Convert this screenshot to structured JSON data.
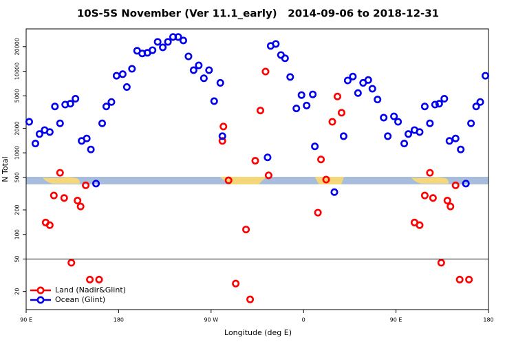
{
  "chart_data": {
    "type": "scatter",
    "title": "10S-5S November (Ver 11.1_early)   2014-09-06 to 2018-12-31",
    "xlabel": "Longitude (deg E)",
    "ylabel": "N Total",
    "xlim": [
      90,
      540
    ],
    "xticks": [
      {
        "value": 90,
        "label": "90 E"
      },
      180,
      {
        "value": 270,
        "label": "90 W"
      },
      {
        "value": 360,
        "label": "0"
      },
      {
        "value": 450,
        "label": "90 E"
      },
      {
        "value": 540,
        "label": "180"
      }
    ],
    "ylim": [
      12,
      33000
    ],
    "log_y": true,
    "yticks": [
      20,
      50,
      100,
      200,
      500,
      1000,
      2000,
      5000,
      10000,
      20000
    ],
    "hline": 50,
    "legend": "bottom-left",
    "series": [
      {
        "name": "Land (Nadir&Glint)",
        "color": "#ff0000",
        "x": [
          109,
          113,
          117,
          123,
          127,
          134,
          140,
          143,
          148,
          152,
          161,
          281,
          282,
          287,
          294,
          304,
          308,
          313,
          318,
          323,
          326,
          374,
          377,
          382,
          388,
          393,
          397,
          468,
          473,
          478,
          483,
          486,
          494,
          500,
          503,
          508,
          512,
          521
        ],
        "values": [
          140,
          130,
          300,
          570,
          280,
          45,
          260,
          220,
          400,
          28,
          28,
          1400,
          2100,
          460,
          25,
          115,
          16,
          800,
          3300,
          9900,
          530,
          185,
          830,
          470,
          2400,
          4900,
          3100,
          140,
          130,
          300,
          570,
          280,
          45,
          260,
          220,
          400,
          28,
          28
        ]
      },
      {
        "name": "Ocean (Glint)",
        "color": "#0000ee",
        "x": [
          93,
          99,
          103,
          108,
          113,
          118,
          123,
          128,
          133,
          138,
          144,
          149,
          153,
          158,
          164,
          168,
          173,
          178,
          184,
          188,
          193,
          198,
          203,
          208,
          213,
          218,
          223,
          228,
          233,
          238,
          243,
          248,
          253,
          258,
          263,
          268,
          273,
          279,
          281,
          325,
          328,
          333,
          338,
          342,
          347,
          353,
          358,
          363,
          369,
          371,
          390,
          399,
          403,
          408,
          413,
          418,
          423,
          427,
          432,
          438,
          442,
          448,
          452,
          458,
          462,
          468,
          473,
          478,
          483,
          488,
          492,
          497,
          502,
          508,
          513,
          518,
          523,
          528,
          532,
          537
        ],
        "values": [
          2400,
          1300,
          1700,
          1900,
          1800,
          3700,
          2300,
          3900,
          4000,
          4600,
          1400,
          1500,
          1100,
          420,
          2300,
          3700,
          4200,
          8800,
          9200,
          6400,
          10700,
          17800,
          16500,
          16800,
          18100,
          22900,
          19600,
          22900,
          26300,
          26300,
          23800,
          15200,
          10300,
          11800,
          8200,
          10300,
          4300,
          7200,
          1600,
          880,
          20400,
          21600,
          15800,
          14400,
          8500,
          3500,
          5100,
          3800,
          5200,
          1200,
          330,
          1600,
          7700,
          8600,
          5400,
          7200,
          7800,
          6100,
          4500,
          2700,
          1600,
          2800,
          2400,
          1300,
          1700,
          1900,
          1800,
          3700,
          2300,
          3900,
          4000,
          4600,
          1400,
          1500,
          1100,
          420,
          2300,
          3700,
          4200,
          8800
        ]
      }
    ]
  }
}
